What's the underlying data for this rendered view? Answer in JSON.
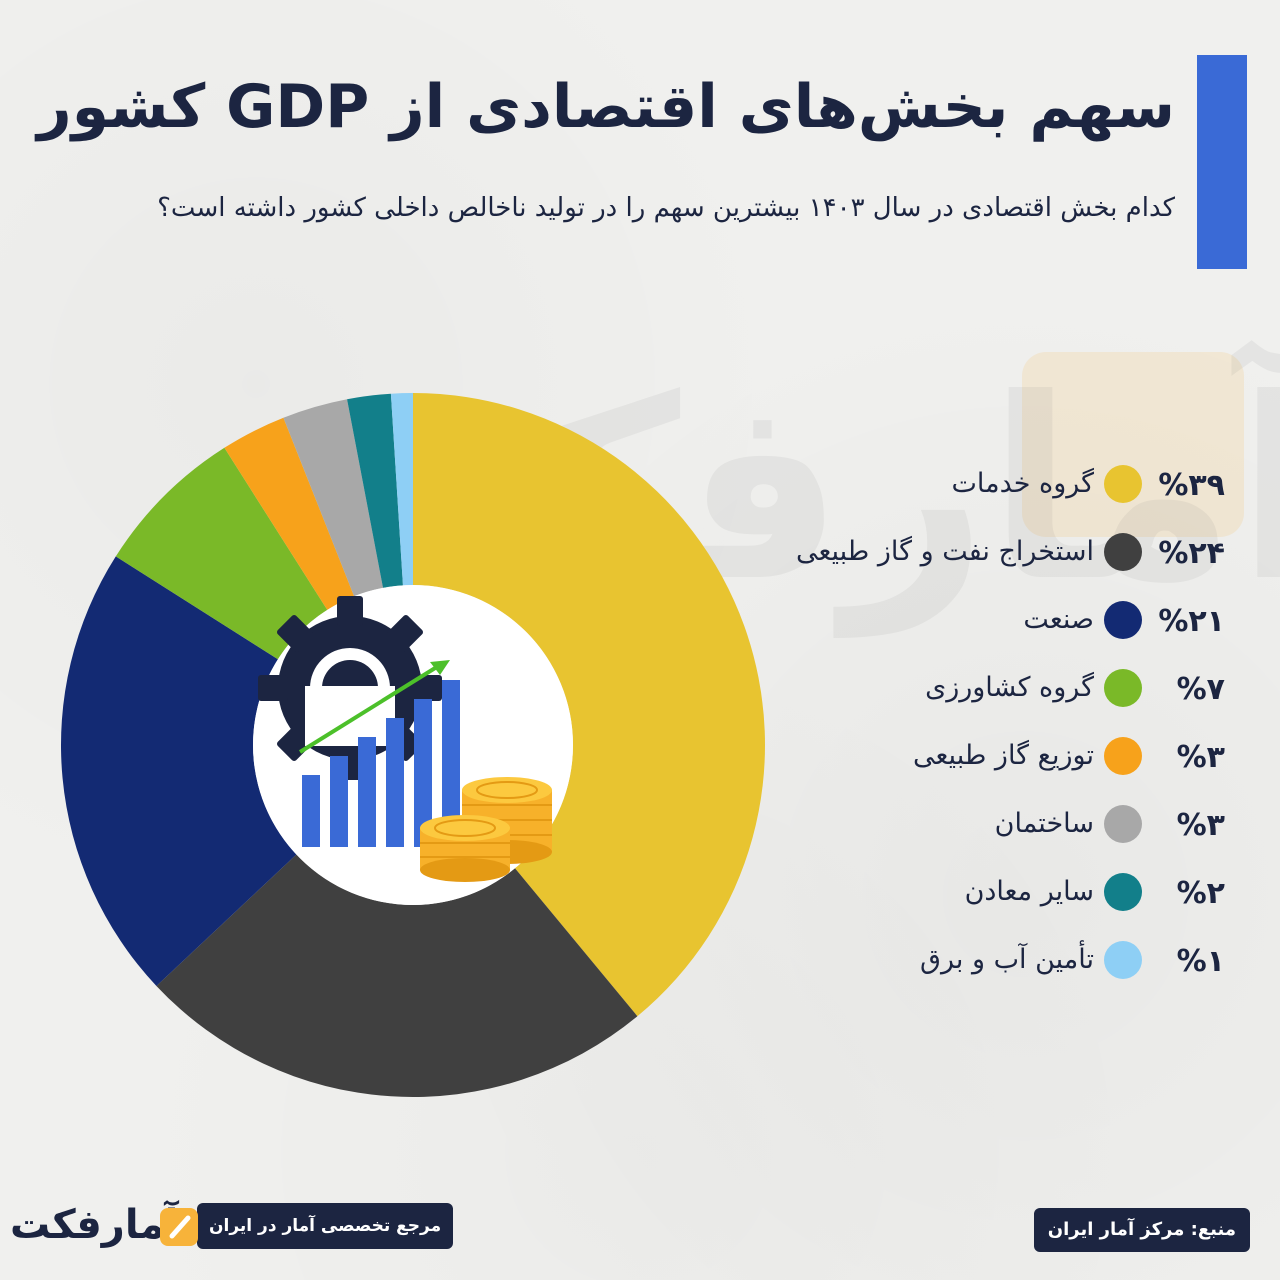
{
  "header": {
    "title": "سهم بخش‌های اقتصادی از GDP کشور",
    "subtitle": "کدام بخش اقتصادی در سال ۱۴۰۳ بیشترین سهم را در تولید ناخالص داخلی کشور داشته است؟"
  },
  "chart_data": {
    "type": "pie",
    "donut": true,
    "title": "سهم بخش‌های اقتصادی از GDP کشور",
    "categories": [
      "گروه خدمات",
      "استخراج نفت و گاز طبیعی",
      "صنعت",
      "گروه کشاورزی",
      "توزیع گاز طبیعی",
      "ساختمان",
      "سایر معادن",
      "تأمین آب و برق"
    ],
    "values": [
      39,
      24,
      21,
      7,
      3,
      3,
      2,
      1
    ],
    "value_labels": [
      "%۳۹",
      "%۲۴",
      "%۲۱",
      "%۷",
      "%۳",
      "%۳",
      "%۲",
      "%۱"
    ],
    "colors": [
      "#e8c430",
      "#404040",
      "#132a73",
      "#7ab928",
      "#f7a21b",
      "#a8a8a8",
      "#127f8a",
      "#8ecff5"
    ],
    "legend_position": "right",
    "center_icon": "growth-chart-gear-coins-icon"
  },
  "footer": {
    "source": "منبع: مرکز آمار ایران",
    "reference": "مرجع تخصصی آمار در ایران",
    "logo_text": "آمارفکت"
  },
  "colors": {
    "accent": "#3a6ad6",
    "navy": "#1c2541",
    "logo_orange": "#f7b33a"
  }
}
